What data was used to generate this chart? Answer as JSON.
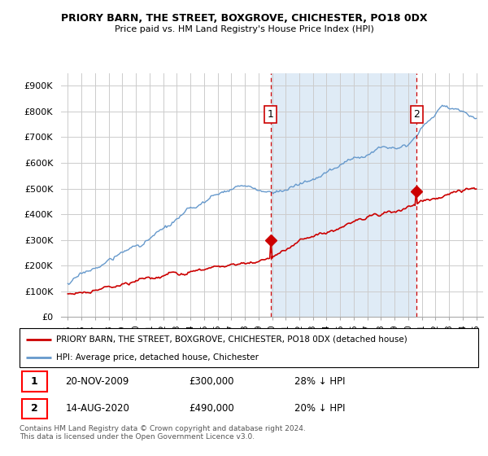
{
  "title": "PRIORY BARN, THE STREET, BOXGROVE, CHICHESTER, PO18 0DX",
  "subtitle": "Price paid vs. HM Land Registry's House Price Index (HPI)",
  "ylabel_ticks": [
    "£0",
    "£100K",
    "£200K",
    "£300K",
    "£400K",
    "£500K",
    "£600K",
    "£700K",
    "£800K",
    "£900K"
  ],
  "ytick_values": [
    0,
    100000,
    200000,
    300000,
    400000,
    500000,
    600000,
    700000,
    800000,
    900000
  ],
  "ylim": [
    0,
    950000
  ],
  "xlim_start": 1994.5,
  "xlim_end": 2025.5,
  "sale1_x": 2009.89,
  "sale1_y": 300000,
  "sale1_label": "1",
  "sale2_x": 2020.62,
  "sale2_y": 490000,
  "sale2_label": "2",
  "red_color": "#cc0000",
  "blue_color": "#6699cc",
  "blue_fill": "#ddeeff",
  "legend_entries": [
    "PRIORY BARN, THE STREET, BOXGROVE, CHICHESTER, PO18 0DX (detached house)",
    "HPI: Average price, detached house, Chichester"
  ],
  "note1_label": "1",
  "note1_date": "20-NOV-2009",
  "note1_price": "£300,000",
  "note1_pct": "28% ↓ HPI",
  "note2_label": "2",
  "note2_date": "14-AUG-2020",
  "note2_price": "£490,000",
  "note2_pct": "20% ↓ HPI",
  "footer": "Contains HM Land Registry data © Crown copyright and database right 2024.\nThis data is licensed under the Open Government Licence v3.0.",
  "background_color": "#ffffff",
  "grid_color": "#cccccc"
}
